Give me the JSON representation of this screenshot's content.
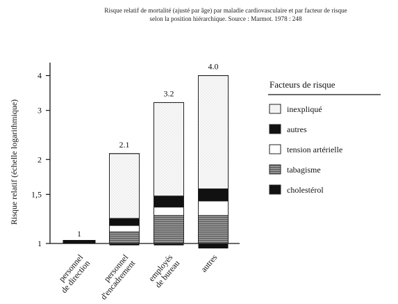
{
  "chart_data": {
    "type": "bar",
    "title_lines": [
      "Risque relatif de mortalité (ajusté par âge) par maladie cardiovasculaire et par facteur de risque",
      "selon la position hiérarchique. Source : Marmot. 1978 : 248"
    ],
    "ylabel": "Risque relatif (échelle logarithmique)",
    "yscale": "log",
    "ylim": [
      1,
      4.3
    ],
    "yticks": [
      1,
      1.5,
      2,
      3,
      4
    ],
    "ytick_labels": [
      "1",
      "1,5",
      "2",
      "3",
      "4"
    ],
    "categories": [
      [
        "personnel",
        "de direction"
      ],
      [
        "personnel",
        "d'encadrement"
      ],
      [
        "employés",
        "de bureau"
      ],
      [
        "autres"
      ]
    ],
    "totals": [
      1,
      2.1,
      3.2,
      4.0
    ],
    "total_labels": [
      "1",
      "2.1",
      "3.2",
      "4.0"
    ],
    "legend_title": "Facteurs de risque",
    "legend_position": "right",
    "series": [
      {
        "name": "cholestérol",
        "color": "#111111",
        "pattern": "solid",
        "values": [
          1.02,
          0.985,
          0.985,
          0.96
        ]
      },
      {
        "name": "tabagisme",
        "color": "#777777",
        "pattern": "stripes",
        "values": [
          1.02,
          1.1,
          1.26,
          1.26
        ]
      },
      {
        "name": "tension artérielle",
        "color": "#ffffff",
        "pattern": "white",
        "values": [
          1.02,
          1.16,
          1.35,
          1.42
        ]
      },
      {
        "name": "autres",
        "color": "#111111",
        "pattern": "solid",
        "values": [
          1.02,
          1.23,
          1.48,
          1.57
        ]
      },
      {
        "name": "inexpliqué",
        "color": "#f7f7f7",
        "pattern": "dotted",
        "values": [
          1.02,
          2.1,
          3.2,
          4.0
        ]
      }
    ],
    "legend_order": [
      "inexpliqué",
      "autres",
      "tension artérielle",
      "tabagisme",
      "cholestérol"
    ],
    "grid": false
  }
}
